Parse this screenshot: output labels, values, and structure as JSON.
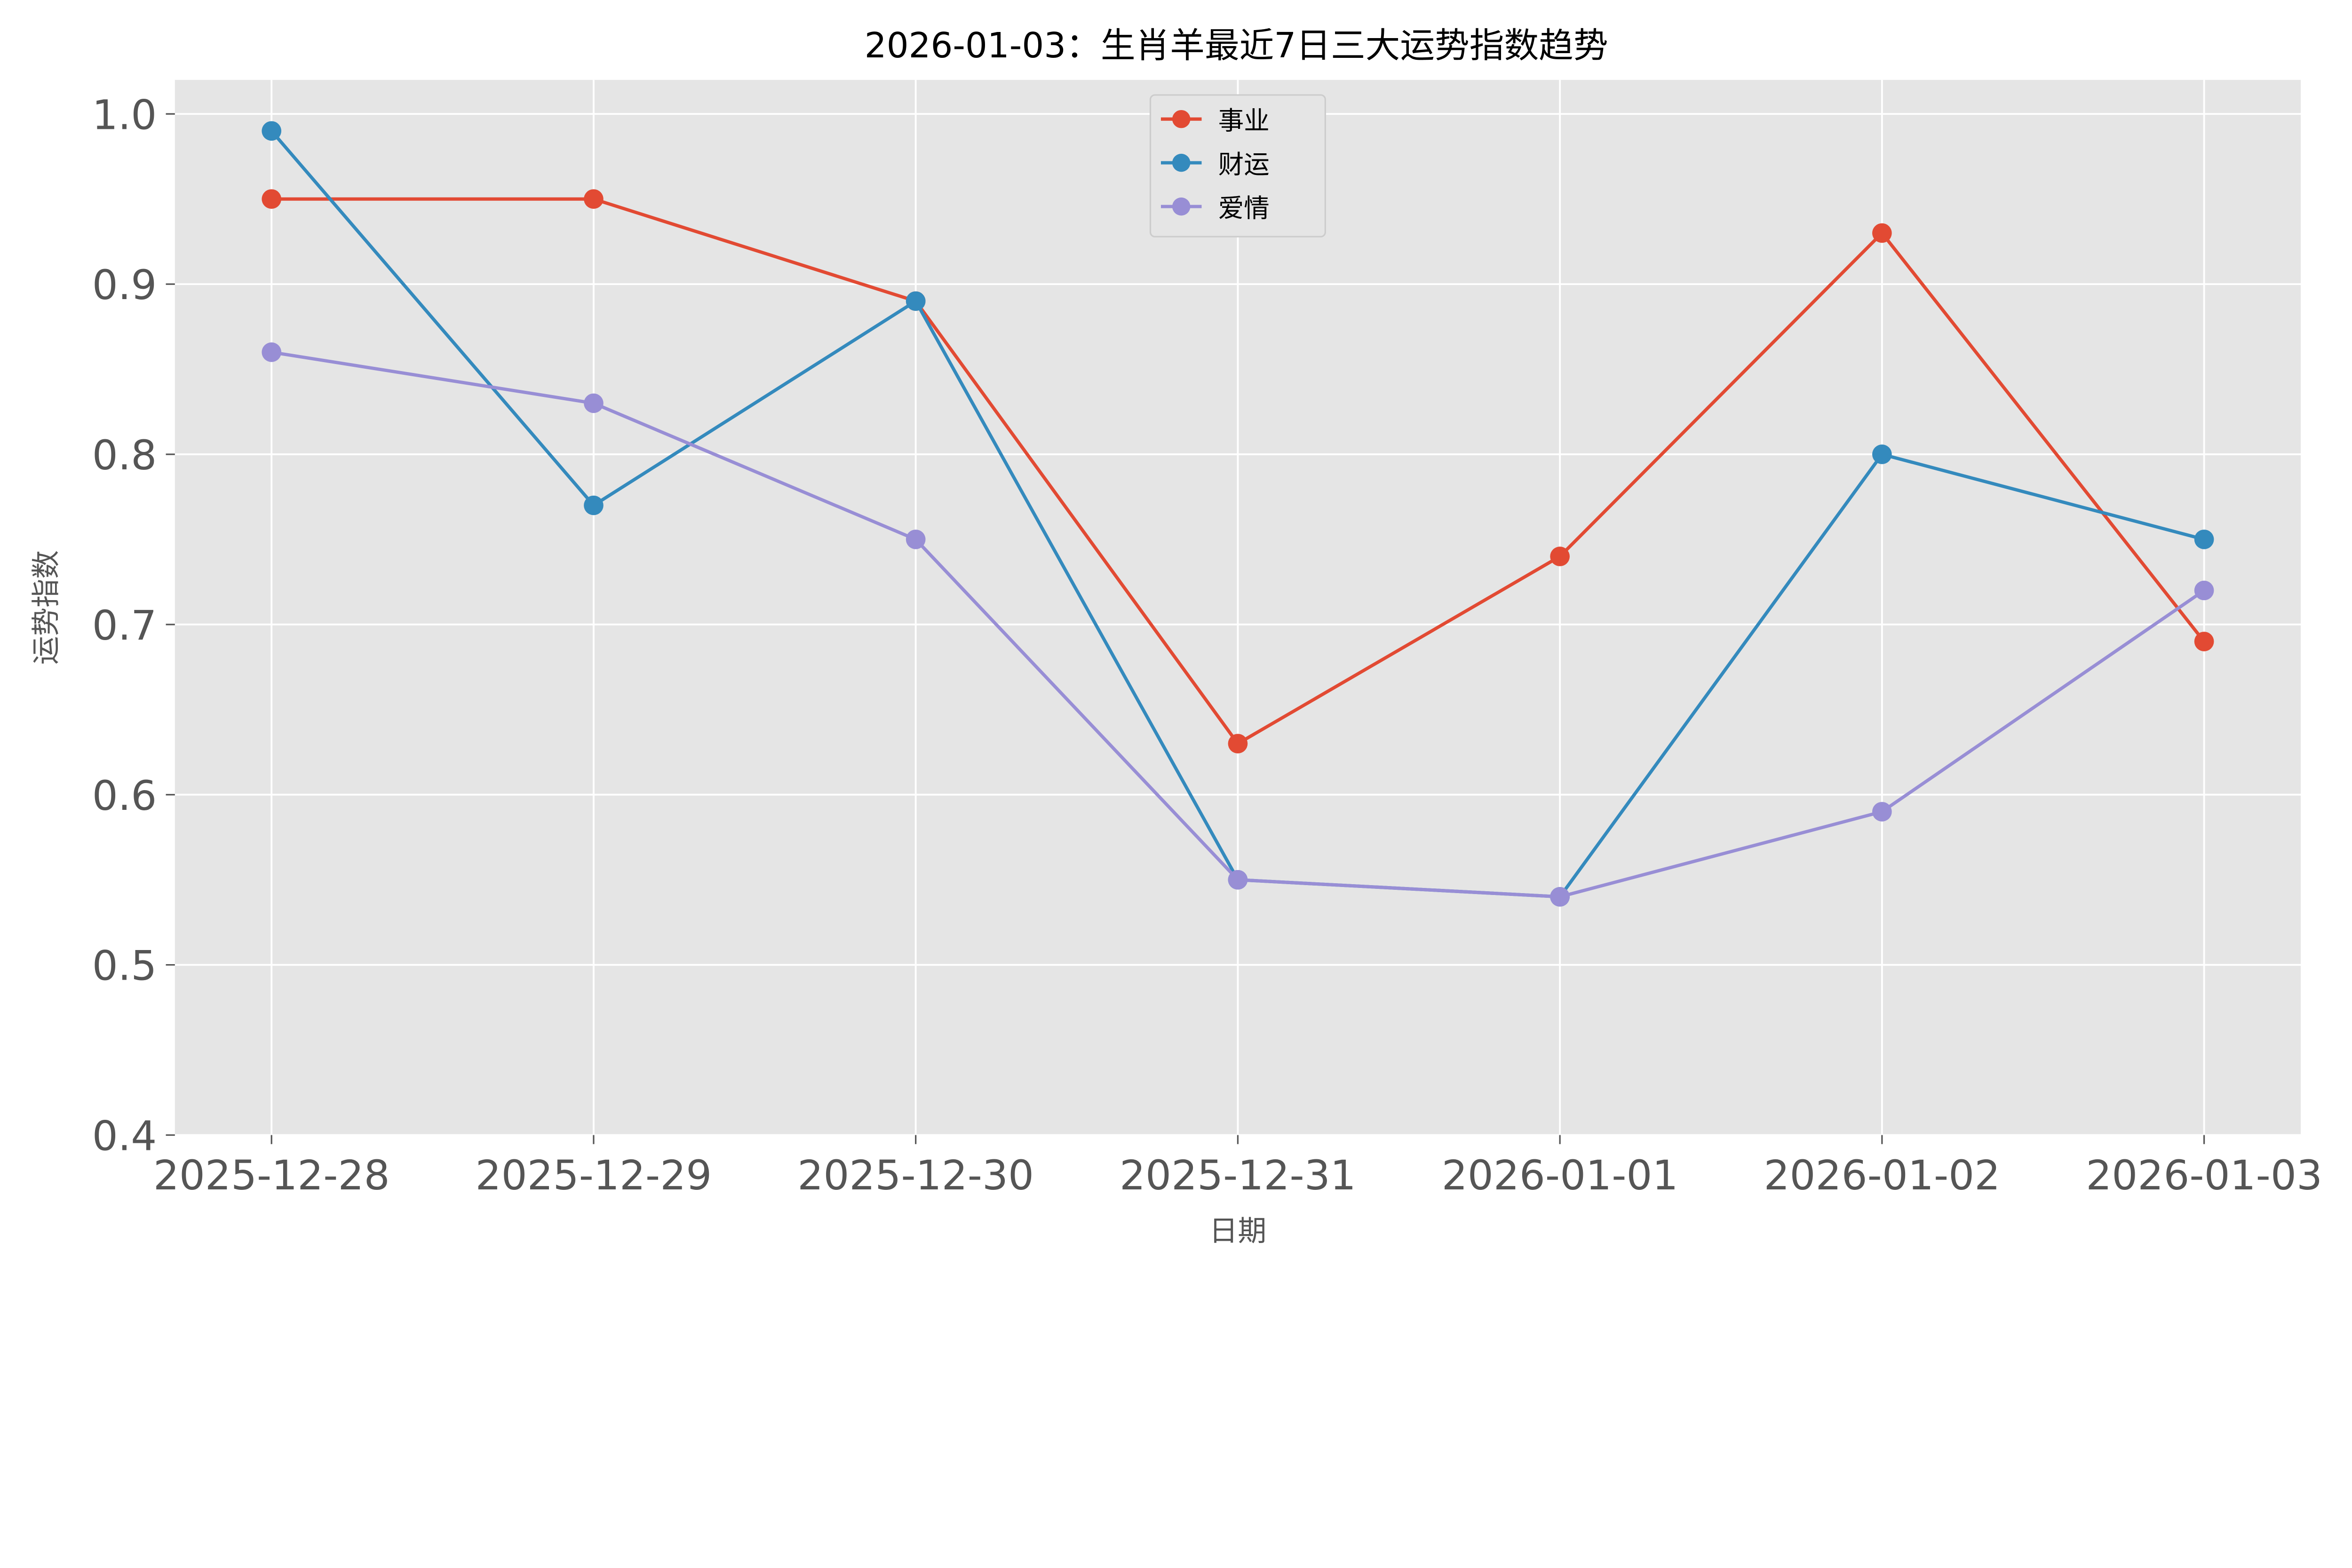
{
  "chart_data": {
    "type": "line",
    "title": "2026-01-03：生肖羊最近7日三大运势指数趋势",
    "xlabel": "日期",
    "ylabel": "运势指数",
    "categories": [
      "2025-12-28",
      "2025-12-29",
      "2025-12-30",
      "2025-12-31",
      "2026-01-01",
      "2026-01-02",
      "2026-01-03"
    ],
    "ylim": [
      0.4,
      1.02
    ],
    "yticks": [
      "0.4",
      "0.5",
      "0.6",
      "0.7",
      "0.8",
      "0.9",
      "1.0"
    ],
    "grid": true,
    "legend_placement": "upper-center",
    "background": "#e5e5e5",
    "series": [
      {
        "name": "事业",
        "color": "#e24a33",
        "values": [
          0.95,
          0.95,
          0.89,
          0.63,
          0.74,
          0.93,
          0.69
        ]
      },
      {
        "name": "财运",
        "color": "#348abd",
        "values": [
          0.99,
          0.77,
          0.89,
          0.55,
          0.54,
          0.8,
          0.75
        ]
      },
      {
        "name": "爱情",
        "color": "#988ed5",
        "values": [
          0.86,
          0.83,
          0.75,
          0.55,
          0.54,
          0.59,
          0.72
        ]
      }
    ]
  }
}
